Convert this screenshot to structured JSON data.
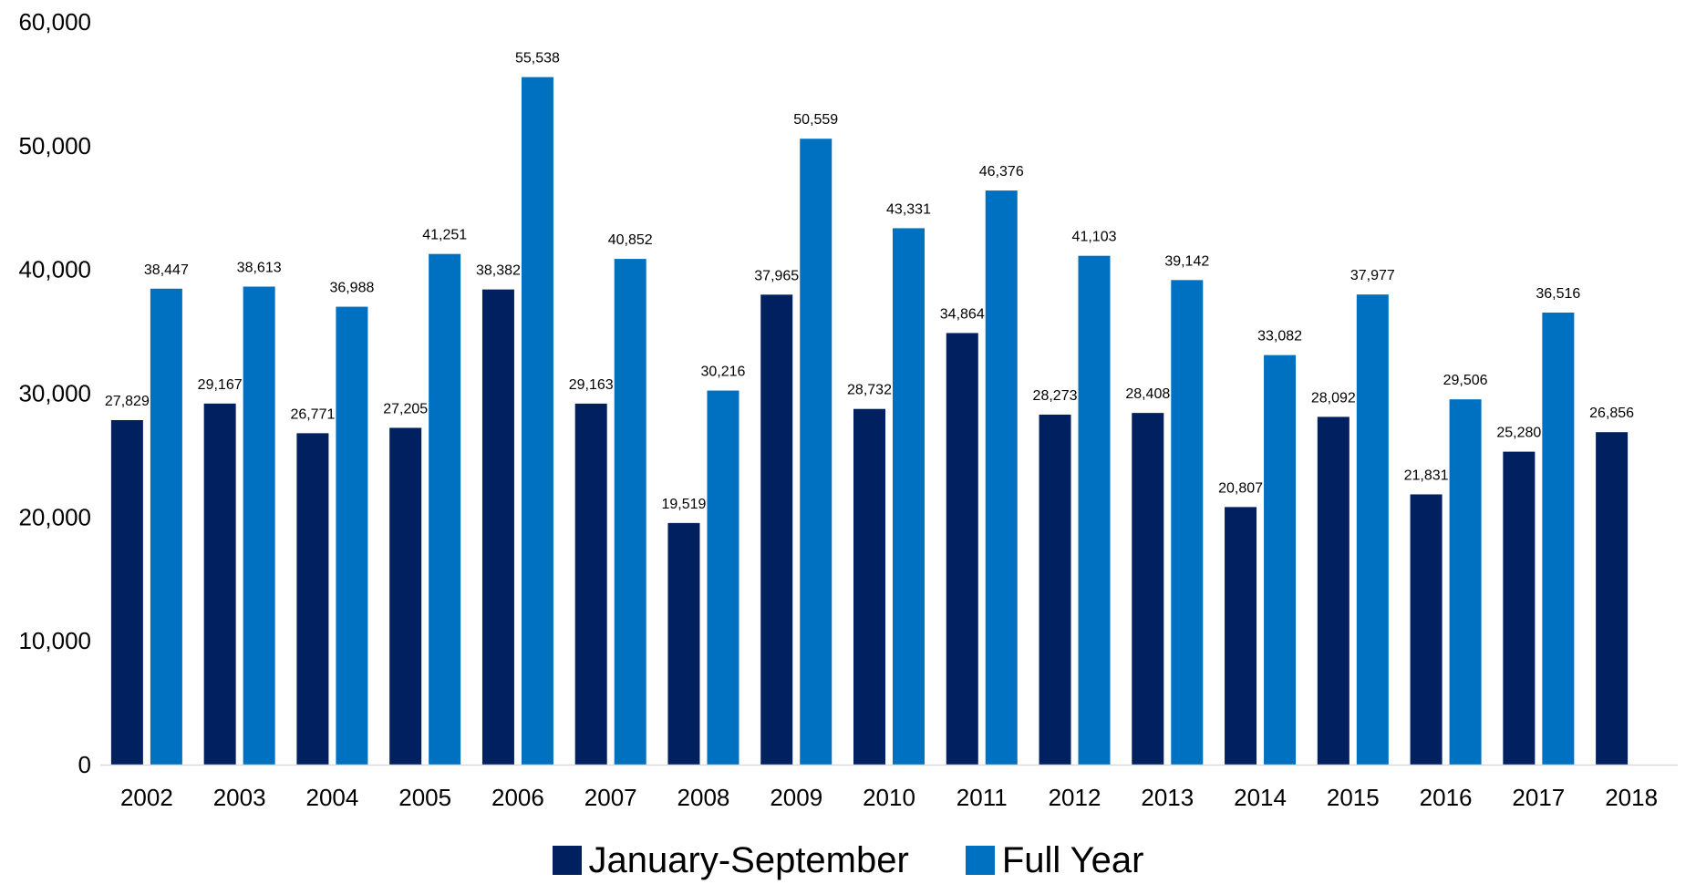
{
  "chart_data": {
    "type": "bar",
    "title": "",
    "xlabel": "",
    "ylabel": "",
    "ylim": [
      0,
      60000
    ],
    "y_ticks": [
      "0",
      "10,000",
      "20,000",
      "30,000",
      "40,000",
      "50,000",
      "60,000"
    ],
    "y_tick_values": [
      0,
      10000,
      20000,
      30000,
      40000,
      50000,
      60000
    ],
    "grid": false,
    "legend_position": "bottom",
    "categories": [
      "2002",
      "2003",
      "2004",
      "2005",
      "2006",
      "2007",
      "2008",
      "2009",
      "2010",
      "2011",
      "2012",
      "2013",
      "2014",
      "2015",
      "2016",
      "2017",
      "2018"
    ],
    "series": [
      {
        "name": "January-September",
        "color": "#002060",
        "values": [
          27829,
          29167,
          26771,
          27205,
          38382,
          29163,
          19519,
          37965,
          28732,
          34864,
          28273,
          28408,
          20807,
          28092,
          21831,
          25280,
          26856
        ],
        "labels": [
          "27,829",
          "29,167",
          "26,771",
          "27,205",
          "38,382",
          "29,163",
          "19,519",
          "37,965",
          "28,732",
          "34,864",
          "28,273",
          "28,408",
          "20,807",
          "28,092",
          "21,831",
          "25,280",
          "26,856"
        ]
      },
      {
        "name": "Full Year",
        "color": "#0070C0",
        "values": [
          38447,
          38613,
          36988,
          41251,
          55538,
          40852,
          30216,
          50559,
          43331,
          46376,
          41103,
          39142,
          33082,
          37977,
          29506,
          36516,
          null
        ],
        "labels": [
          "38,447",
          "38,613",
          "36,988",
          "41,251",
          "55,538",
          "40,852",
          "30,216",
          "50,559",
          "43,331",
          "46,376",
          "41,103",
          "39,142",
          "33,082",
          "37,977",
          "29,506",
          "36,516",
          ""
        ]
      }
    ]
  }
}
